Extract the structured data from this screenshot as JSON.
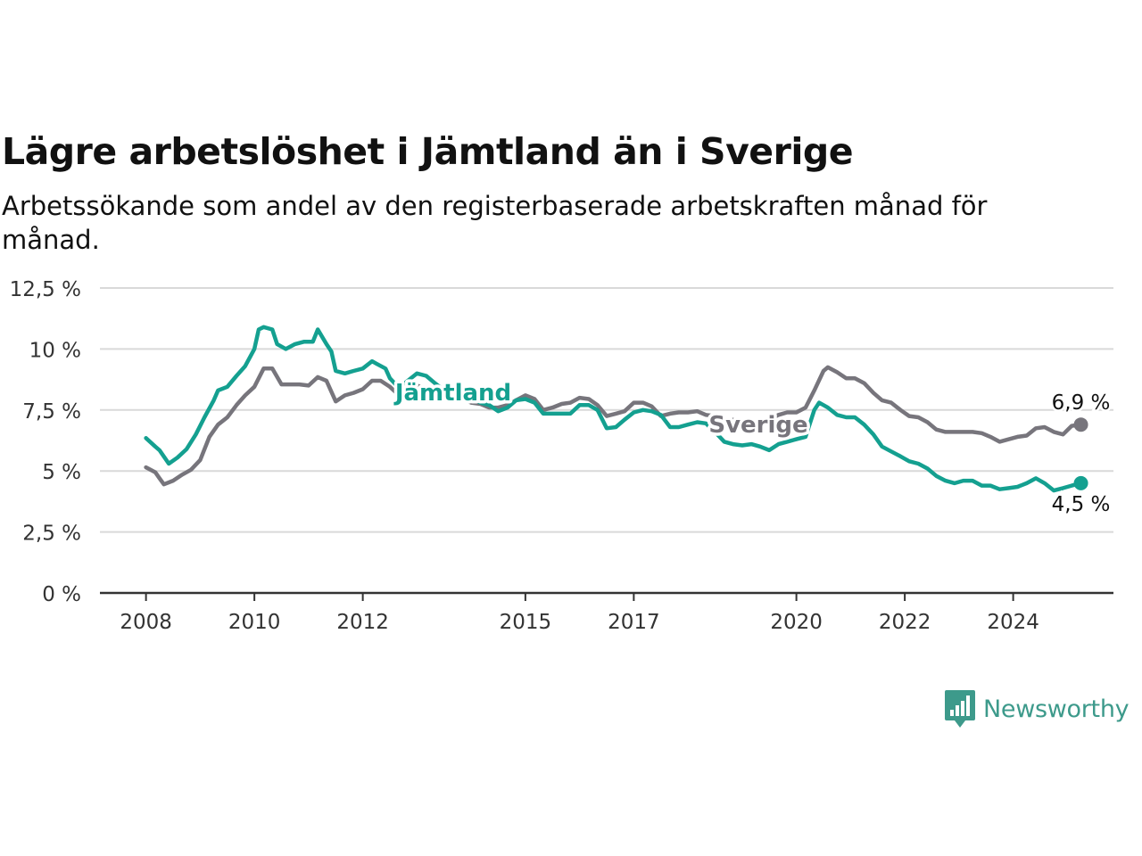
{
  "title": "Lägre arbetslöshet i Jämtland än i Sverige",
  "subtitle": "Arbetssökande som andel av den registerbaserade arbetskraften månad för månad.",
  "brand": {
    "name": "Newsworthy",
    "color": "#3d9a8b",
    "icon": "bar-chart-speech-bubble-icon"
  },
  "chart_data": {
    "type": "line",
    "x_unit": "year",
    "y_ticks": [
      {
        "value": 0,
        "label": "0 %"
      },
      {
        "value": 2.5,
        "label": "2,5 %"
      },
      {
        "value": 5,
        "label": "5 %"
      },
      {
        "value": 7.5,
        "label": "7,5 %"
      },
      {
        "value": 10,
        "label": "10 %"
      },
      {
        "value": 12.5,
        "label": "12,5 %"
      }
    ],
    "x_ticks": [
      {
        "value": 2008,
        "label": "2008"
      },
      {
        "value": 2010,
        "label": "2010"
      },
      {
        "value": 2012,
        "label": "2012"
      },
      {
        "value": 2015,
        "label": "2015"
      },
      {
        "value": 2017,
        "label": "2017"
      },
      {
        "value": 2020,
        "label": "2020"
      },
      {
        "value": 2022,
        "label": "2022"
      },
      {
        "value": 2024,
        "label": "2024"
      }
    ],
    "ylim": [
      0,
      12.5
    ],
    "xlim": [
      2007.15,
      2025.85
    ],
    "grid": true,
    "series": [
      {
        "name": "Jämtland",
        "color": "#14a090",
        "end_label": "4,5 %",
        "points": [
          [
            2008,
            6.35
          ],
          [
            2008.17,
            6.0
          ],
          [
            2008.25,
            5.85
          ],
          [
            2008.42,
            5.3
          ],
          [
            2008.58,
            5.55
          ],
          [
            2008.75,
            5.9
          ],
          [
            2008.92,
            6.5
          ],
          [
            2009.08,
            7.2
          ],
          [
            2009.25,
            7.9
          ],
          [
            2009.33,
            8.3
          ],
          [
            2009.5,
            8.45
          ],
          [
            2009.67,
            8.9
          ],
          [
            2009.83,
            9.3
          ],
          [
            2010,
            10.0
          ],
          [
            2010.08,
            10.8
          ],
          [
            2010.17,
            10.9
          ],
          [
            2010.33,
            10.8
          ],
          [
            2010.42,
            10.2
          ],
          [
            2010.58,
            10.0
          ],
          [
            2010.75,
            10.2
          ],
          [
            2010.92,
            10.3
          ],
          [
            2011.08,
            10.3
          ],
          [
            2011.17,
            10.8
          ],
          [
            2011.33,
            10.2
          ],
          [
            2011.42,
            9.9
          ],
          [
            2011.5,
            9.1
          ],
          [
            2011.67,
            9.0
          ],
          [
            2011.83,
            9.1
          ],
          [
            2012,
            9.2
          ],
          [
            2012.17,
            9.5
          ],
          [
            2012.25,
            9.4
          ],
          [
            2012.42,
            9.2
          ],
          [
            2012.5,
            8.8
          ],
          [
            2012.67,
            8.4
          ],
          [
            2012.83,
            8.7
          ],
          [
            2013,
            9.0
          ],
          [
            2013.17,
            8.9
          ],
          [
            2013.33,
            8.6
          ],
          [
            2013.5,
            8.3
          ],
          [
            2013.67,
            8.0
          ],
          [
            2013.83,
            8.2
          ],
          [
            2014,
            8.0
          ],
          [
            2014.17,
            7.8
          ],
          [
            2014.33,
            7.7
          ],
          [
            2014.5,
            7.45
          ],
          [
            2014.67,
            7.6
          ],
          [
            2014.83,
            7.9
          ],
          [
            2015,
            7.95
          ],
          [
            2015.17,
            7.8
          ],
          [
            2015.33,
            7.35
          ],
          [
            2015.5,
            7.35
          ],
          [
            2015.67,
            7.35
          ],
          [
            2015.83,
            7.35
          ],
          [
            2016,
            7.7
          ],
          [
            2016.17,
            7.7
          ],
          [
            2016.33,
            7.5
          ],
          [
            2016.5,
            6.75
          ],
          [
            2016.67,
            6.8
          ],
          [
            2016.83,
            7.1
          ],
          [
            2017,
            7.4
          ],
          [
            2017.17,
            7.5
          ],
          [
            2017.33,
            7.45
          ],
          [
            2017.5,
            7.3
          ],
          [
            2017.67,
            6.8
          ],
          [
            2017.83,
            6.8
          ],
          [
            2018,
            6.9
          ],
          [
            2018.17,
            7.0
          ],
          [
            2018.33,
            6.95
          ],
          [
            2018.5,
            6.6
          ],
          [
            2018.67,
            6.2
          ],
          [
            2018.83,
            6.1
          ],
          [
            2019,
            6.05
          ],
          [
            2019.17,
            6.1
          ],
          [
            2019.33,
            6.0
          ],
          [
            2019.5,
            5.85
          ],
          [
            2019.67,
            6.1
          ],
          [
            2019.83,
            6.2
          ],
          [
            2020,
            6.3
          ],
          [
            2020.17,
            6.4
          ],
          [
            2020.33,
            7.5
          ],
          [
            2020.42,
            7.8
          ],
          [
            2020.58,
            7.6
          ],
          [
            2020.75,
            7.3
          ],
          [
            2020.92,
            7.2
          ],
          [
            2021.08,
            7.2
          ],
          [
            2021.25,
            6.9
          ],
          [
            2021.42,
            6.5
          ],
          [
            2021.58,
            6.0
          ],
          [
            2021.75,
            5.8
          ],
          [
            2021.92,
            5.6
          ],
          [
            2022.08,
            5.4
          ],
          [
            2022.25,
            5.3
          ],
          [
            2022.42,
            5.1
          ],
          [
            2022.58,
            4.8
          ],
          [
            2022.75,
            4.6
          ],
          [
            2022.92,
            4.5
          ],
          [
            2023.08,
            4.6
          ],
          [
            2023.25,
            4.6
          ],
          [
            2023.42,
            4.4
          ],
          [
            2023.58,
            4.4
          ],
          [
            2023.75,
            4.25
          ],
          [
            2023.92,
            4.3
          ],
          [
            2024.08,
            4.35
          ],
          [
            2024.25,
            4.5
          ],
          [
            2024.42,
            4.7
          ],
          [
            2024.58,
            4.5
          ],
          [
            2024.75,
            4.2
          ],
          [
            2024.92,
            4.3
          ],
          [
            2025.08,
            4.4
          ],
          [
            2025.25,
            4.5
          ]
        ]
      },
      {
        "name": "Sverige",
        "color": "#77757c",
        "end_label": "6,9 %",
        "points": [
          [
            2008,
            5.15
          ],
          [
            2008.17,
            4.95
          ],
          [
            2008.25,
            4.7
          ],
          [
            2008.33,
            4.45
          ],
          [
            2008.5,
            4.6
          ],
          [
            2008.67,
            4.85
          ],
          [
            2008.83,
            5.05
          ],
          [
            2009,
            5.45
          ],
          [
            2009.17,
            6.4
          ],
          [
            2009.33,
            6.9
          ],
          [
            2009.5,
            7.2
          ],
          [
            2009.67,
            7.7
          ],
          [
            2009.83,
            8.1
          ],
          [
            2010,
            8.45
          ],
          [
            2010.17,
            9.2
          ],
          [
            2010.33,
            9.2
          ],
          [
            2010.5,
            8.55
          ],
          [
            2010.67,
            8.55
          ],
          [
            2010.83,
            8.55
          ],
          [
            2011,
            8.5
          ],
          [
            2011.17,
            8.85
          ],
          [
            2011.33,
            8.7
          ],
          [
            2011.5,
            7.85
          ],
          [
            2011.67,
            8.1
          ],
          [
            2011.83,
            8.2
          ],
          [
            2012,
            8.35
          ],
          [
            2012.17,
            8.7
          ],
          [
            2012.33,
            8.7
          ],
          [
            2012.5,
            8.45
          ],
          [
            2012.67,
            8.1
          ],
          [
            2012.83,
            8.3
          ],
          [
            2013,
            8.5
          ],
          [
            2013.17,
            8.35
          ],
          [
            2013.33,
            8.2
          ],
          [
            2013.5,
            8.05
          ],
          [
            2013.67,
            7.95
          ],
          [
            2013.83,
            8.0
          ],
          [
            2014,
            7.8
          ],
          [
            2014.17,
            7.75
          ],
          [
            2014.33,
            7.6
          ],
          [
            2014.5,
            7.6
          ],
          [
            2014.67,
            7.7
          ],
          [
            2014.83,
            7.9
          ],
          [
            2015,
            8.1
          ],
          [
            2015.17,
            7.95
          ],
          [
            2015.33,
            7.5
          ],
          [
            2015.5,
            7.6
          ],
          [
            2015.67,
            7.75
          ],
          [
            2015.83,
            7.8
          ],
          [
            2016,
            8.0
          ],
          [
            2016.17,
            7.95
          ],
          [
            2016.33,
            7.7
          ],
          [
            2016.5,
            7.25
          ],
          [
            2016.67,
            7.35
          ],
          [
            2016.83,
            7.45
          ],
          [
            2017,
            7.8
          ],
          [
            2017.17,
            7.8
          ],
          [
            2017.33,
            7.65
          ],
          [
            2017.5,
            7.25
          ],
          [
            2017.67,
            7.35
          ],
          [
            2017.83,
            7.4
          ],
          [
            2018,
            7.4
          ],
          [
            2018.17,
            7.45
          ],
          [
            2018.33,
            7.3
          ],
          [
            2018.5,
            7.25
          ],
          [
            2018.67,
            7.1
          ],
          [
            2018.83,
            7.1
          ],
          [
            2019,
            7.0
          ],
          [
            2019.17,
            7.0
          ],
          [
            2019.33,
            7.05
          ],
          [
            2019.5,
            7.1
          ],
          [
            2019.67,
            7.3
          ],
          [
            2019.83,
            7.4
          ],
          [
            2020,
            7.4
          ],
          [
            2020.17,
            7.6
          ],
          [
            2020.33,
            8.3
          ],
          [
            2020.5,
            9.1
          ],
          [
            2020.58,
            9.25
          ],
          [
            2020.75,
            9.05
          ],
          [
            2020.92,
            8.8
          ],
          [
            2021.08,
            8.8
          ],
          [
            2021.25,
            8.6
          ],
          [
            2021.42,
            8.2
          ],
          [
            2021.58,
            7.9
          ],
          [
            2021.75,
            7.8
          ],
          [
            2021.92,
            7.5
          ],
          [
            2022.08,
            7.25
          ],
          [
            2022.25,
            7.2
          ],
          [
            2022.42,
            7.0
          ],
          [
            2022.58,
            6.7
          ],
          [
            2022.75,
            6.6
          ],
          [
            2022.92,
            6.6
          ],
          [
            2023.08,
            6.6
          ],
          [
            2023.25,
            6.6
          ],
          [
            2023.42,
            6.55
          ],
          [
            2023.58,
            6.4
          ],
          [
            2023.75,
            6.2
          ],
          [
            2023.92,
            6.3
          ],
          [
            2024.08,
            6.4
          ],
          [
            2024.25,
            6.45
          ],
          [
            2024.42,
            6.75
          ],
          [
            2024.58,
            6.8
          ],
          [
            2024.75,
            6.6
          ],
          [
            2024.92,
            6.5
          ],
          [
            2025.08,
            6.85
          ],
          [
            2025.25,
            6.9
          ]
        ]
      }
    ]
  }
}
